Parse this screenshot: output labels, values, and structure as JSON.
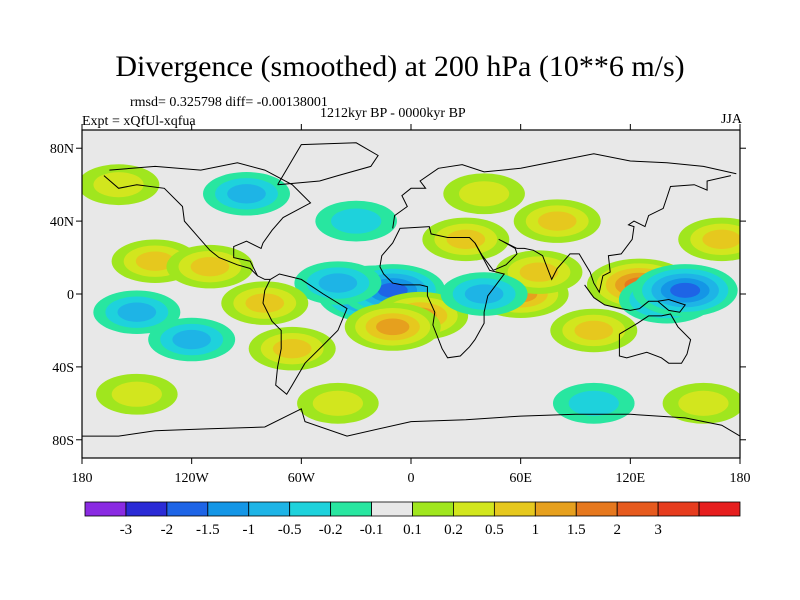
{
  "title": "Divergence (smoothed) at 200 hPa (10**6 m/s)",
  "stats": "rmsd= 0.325798 diff= -0.00138001",
  "period": "1212kyr BP - 0000kyr BP",
  "experiment": "Expt = xQfUl-xqfua",
  "season": "JJA",
  "lat_labels": [
    "80N",
    "40N",
    "0",
    "40S",
    "80S"
  ],
  "lon_labels": [
    "180",
    "120W",
    "60W",
    "0",
    "60E",
    "120E",
    "180"
  ],
  "colorbar": {
    "colors": [
      "#8a2be2",
      "#2b2bd6",
      "#1e64e6",
      "#1496e6",
      "#1eb4e6",
      "#1ed2dc",
      "#28e6a0",
      "#e8e8e8",
      "#a0e61e",
      "#d2e61e",
      "#e6c81e",
      "#e6a01e",
      "#e6781e",
      "#e65a1e",
      "#e63c1e",
      "#e61e1e"
    ],
    "labels": [
      "-3",
      "-2",
      "-1.5",
      "-1",
      "-0.5",
      "-0.2",
      "-0.1",
      "0.1",
      "0.2",
      "0.5",
      "1",
      "1.5",
      "2",
      "3"
    ]
  },
  "chart_data": {
    "type": "heatmap",
    "title": "Divergence (smoothed) at 200 hPa (10**6 m/s)",
    "variable": "Divergence (smoothed) at 200 hPa",
    "units": "10**6 m/s",
    "season": "JJA",
    "period": "1212kyr BP - 0000kyr BP",
    "experiment": "xQfUl-xqfua",
    "rmsd": 0.325798,
    "diff": -0.00138001,
    "x_range": [
      -180,
      180
    ],
    "y_range": [
      -90,
      90
    ],
    "contour_levels": [
      -3,
      -2,
      -1.5,
      -1,
      -0.5,
      -0.2,
      -0.1,
      0.1,
      0.2,
      0.5,
      1,
      1.5,
      2,
      3
    ],
    "features": [
      {
        "lon": -20,
        "lat": 0,
        "value": -2.0
      },
      {
        "lon": -10,
        "lat": 2,
        "value": -1.5
      },
      {
        "lon": -40,
        "lat": 6,
        "value": -0.5
      },
      {
        "lon": 5,
        "lat": -12,
        "value": 1.0
      },
      {
        "lon": -10,
        "lat": -18,
        "value": 1.0
      },
      {
        "lon": 60,
        "lat": 0,
        "value": 1.0
      },
      {
        "lon": 70,
        "lat": 12,
        "value": 0.5
      },
      {
        "lon": 40,
        "lat": 0,
        "value": -0.5
      },
      {
        "lon": 125,
        "lat": 5,
        "value": 1.5
      },
      {
        "lon": 140,
        "lat": -3,
        "value": -1.0
      },
      {
        "lon": 150,
        "lat": 2,
        "value": -1.5
      },
      {
        "lon": 100,
        "lat": -20,
        "value": 0.5
      },
      {
        "lon": -140,
        "lat": 18,
        "value": 0.5
      },
      {
        "lon": -110,
        "lat": 15,
        "value": 0.5
      },
      {
        "lon": -150,
        "lat": -10,
        "value": -0.5
      },
      {
        "lon": -120,
        "lat": -25,
        "value": -0.5
      },
      {
        "lon": -65,
        "lat": -30,
        "value": 0.5
      },
      {
        "lon": -80,
        "lat": -5,
        "value": 0.5
      },
      {
        "lon": 80,
        "lat": 40,
        "value": 0.5
      },
      {
        "lon": 40,
        "lat": 55,
        "value": 0.2
      },
      {
        "lon": -90,
        "lat": 55,
        "value": -0.5
      },
      {
        "lon": -160,
        "lat": 60,
        "value": 0.2
      },
      {
        "lon": 170,
        "lat": 30,
        "value": 0.5
      },
      {
        "lon": -30,
        "lat": 40,
        "value": -0.2
      },
      {
        "lon": 30,
        "lat": 30,
        "value": 0.5
      },
      {
        "lon": -40,
        "lat": -60,
        "value": 0.2
      },
      {
        "lon": 100,
        "lat": -60,
        "value": -0.2
      },
      {
        "lon": 160,
        "lat": -60,
        "value": 0.2
      },
      {
        "lon": -150,
        "lat": -55,
        "value": 0.2
      }
    ]
  }
}
